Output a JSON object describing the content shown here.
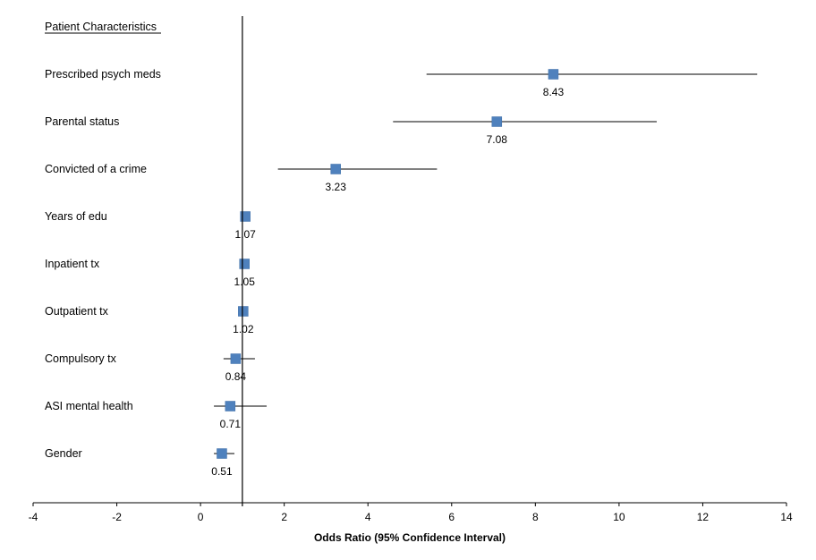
{
  "chart_data": {
    "type": "forest",
    "xlabel": "Odds Ratio (95% Confidence Interval)",
    "xlim": [
      -4,
      14
    ],
    "xticks": [
      -4,
      -2,
      0,
      2,
      4,
      6,
      8,
      10,
      12,
      14
    ],
    "reference_line": 1,
    "grid": false,
    "header": "Patient Characteristics",
    "marker_color": "#4F81BD",
    "rows": [
      {
        "label": "Prescribed psych meds",
        "value": 8.43,
        "value_label": "8.43",
        "ci": [
          5.4,
          13.3
        ]
      },
      {
        "label": "Parental status",
        "value": 7.08,
        "value_label": "7.08",
        "ci": [
          4.6,
          10.9
        ]
      },
      {
        "label": "Convicted of a crime",
        "value": 3.23,
        "value_label": "3.23",
        "ci": [
          1.85,
          5.65
        ]
      },
      {
        "label": "Years of edu",
        "value": 1.07,
        "value_label": "1.07",
        "ci": [
          1.02,
          1.13
        ]
      },
      {
        "label": "Inpatient tx",
        "value": 1.05,
        "value_label": "1.05",
        "ci": [
          1.0,
          1.1
        ]
      },
      {
        "label": "Outpatient tx",
        "value": 1.02,
        "value_label": "1.02",
        "ci": [
          0.99,
          1.05
        ]
      },
      {
        "label": "Compulsory tx",
        "value": 0.84,
        "value_label": "0.84",
        "ci": [
          0.55,
          1.3
        ]
      },
      {
        "label": "ASI mental health",
        "value": 0.71,
        "value_label": "0.71",
        "ci": [
          0.32,
          1.58
        ]
      },
      {
        "label": "Gender",
        "value": 0.51,
        "value_label": "0.51",
        "ci": [
          0.32,
          0.81
        ]
      }
    ]
  }
}
